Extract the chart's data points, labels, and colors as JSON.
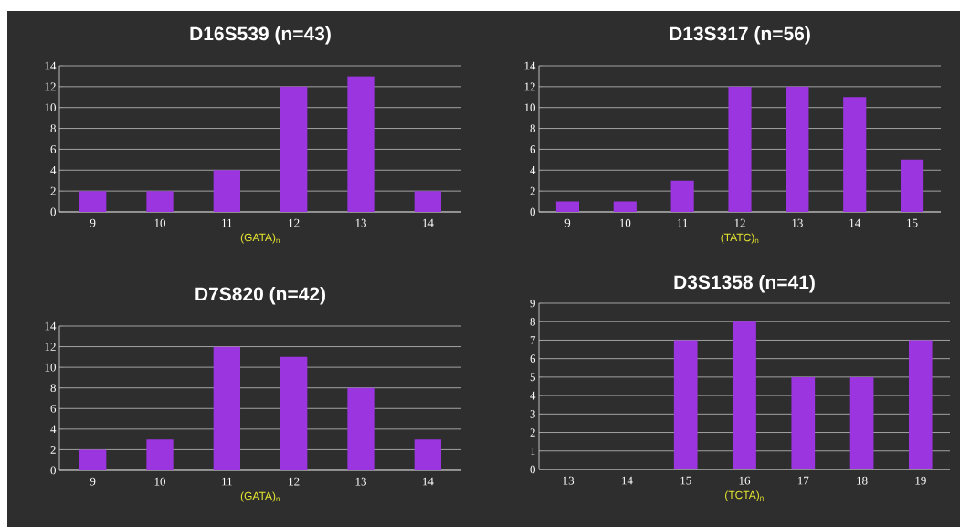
{
  "chart_data": [
    {
      "type": "bar",
      "title": "D16S539  (n=43)",
      "xlabel": "(GATA)$_{n}$",
      "categories": [
        "9",
        "10",
        "11",
        "12",
        "13",
        "14"
      ],
      "values": [
        2,
        2,
        4,
        12,
        13,
        2
      ],
      "color": "#9b35e0",
      "ylim": [
        0,
        14
      ],
      "yticks": [
        0,
        2,
        4,
        6,
        8,
        10,
        12,
        14
      ],
      "grid": "y"
    },
    {
      "type": "bar",
      "title": "D13S317  (n=56)",
      "xlabel": "(TATC)$_{n}$",
      "categories": [
        "9",
        "10",
        "11",
        "12",
        "13",
        "14",
        "15"
      ],
      "values": [
        1,
        1,
        3,
        12,
        12,
        11,
        5
      ],
      "color": "#9b35e0",
      "ylim": [
        0,
        14
      ],
      "yticks": [
        0,
        2,
        4,
        6,
        8,
        10,
        12,
        14
      ],
      "grid": "y"
    },
    {
      "type": "bar",
      "title": "D7S820 (n=42)",
      "xlabel": "(GATA)$_{n}$",
      "categories": [
        "9",
        "10",
        "11",
        "12",
        "13",
        "14"
      ],
      "values": [
        2,
        3,
        12,
        11,
        8,
        3
      ],
      "color": "#9b35e0",
      "ylim": [
        0,
        14
      ],
      "yticks": [
        0,
        2,
        4,
        6,
        8,
        10,
        12,
        14
      ],
      "grid": "y"
    },
    {
      "type": "bar",
      "title": "D3S1358 (n=41)",
      "xlabel": "(TCTA)$_{n}$",
      "categories": [
        "13",
        "14",
        "15",
        "16",
        "17",
        "18",
        "19"
      ],
      "values": [
        0,
        0,
        7,
        8,
        5,
        5,
        7
      ],
      "color": "#9b35e0",
      "ylim": [
        0,
        9
      ],
      "yticks": [
        0,
        1,
        2,
        3,
        4,
        5,
        6,
        7,
        8,
        9
      ],
      "grid": "y"
    }
  ]
}
